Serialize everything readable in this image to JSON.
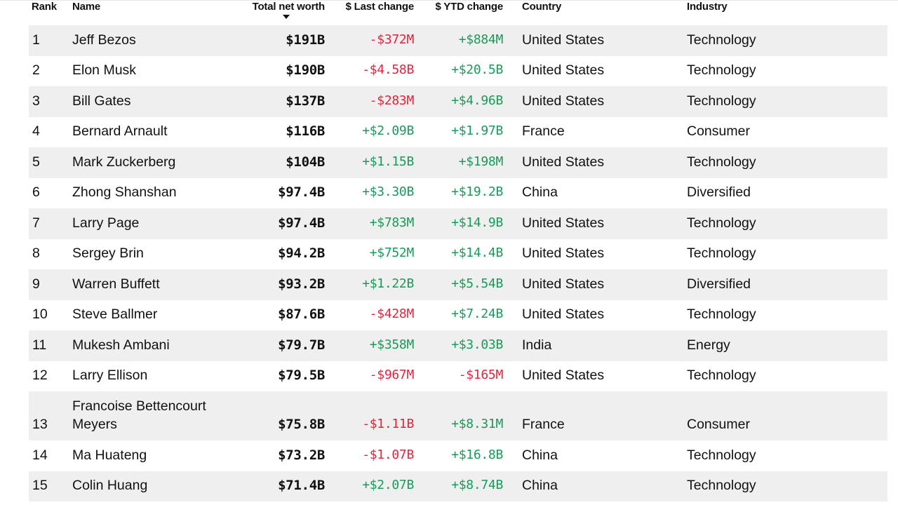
{
  "columns": {
    "rank": "Rank",
    "name": "Name",
    "net_worth": "Total net worth",
    "last_change": "$ Last change",
    "ytd_change": "$ YTD change",
    "country": "Country",
    "industry": "Industry"
  },
  "sort": {
    "column": "net_worth",
    "direction": "descending",
    "icon": "sort-descending-icon"
  },
  "colors": {
    "negative": "#e0243d",
    "positive": "#1a9a5a",
    "row_shade": "#efefef"
  },
  "rows": [
    {
      "rank": "1",
      "name": "Jeff Bezos",
      "net_worth": "$191B",
      "last_change": "-$372M",
      "ytd_change": "+$884M",
      "country": "United States",
      "industry": "Technology"
    },
    {
      "rank": "2",
      "name": "Elon Musk",
      "net_worth": "$190B",
      "last_change": "-$4.58B",
      "ytd_change": "+$20.5B",
      "country": "United States",
      "industry": "Technology"
    },
    {
      "rank": "3",
      "name": "Bill Gates",
      "net_worth": "$137B",
      "last_change": "-$283M",
      "ytd_change": "+$4.96B",
      "country": "United States",
      "industry": "Technology"
    },
    {
      "rank": "4",
      "name": "Bernard Arnault",
      "net_worth": "$116B",
      "last_change": "+$2.09B",
      "ytd_change": "+$1.97B",
      "country": "France",
      "industry": "Consumer"
    },
    {
      "rank": "5",
      "name": "Mark Zuckerberg",
      "net_worth": "$104B",
      "last_change": "+$1.15B",
      "ytd_change": "+$198M",
      "country": "United States",
      "industry": "Technology"
    },
    {
      "rank": "6",
      "name": "Zhong Shanshan",
      "net_worth": "$97.4B",
      "last_change": "+$3.30B",
      "ytd_change": "+$19.2B",
      "country": "China",
      "industry": "Diversified"
    },
    {
      "rank": "7",
      "name": "Larry Page",
      "net_worth": "$97.4B",
      "last_change": "+$783M",
      "ytd_change": "+$14.9B",
      "country": "United States",
      "industry": "Technology"
    },
    {
      "rank": "8",
      "name": "Sergey Brin",
      "net_worth": "$94.2B",
      "last_change": "+$752M",
      "ytd_change": "+$14.4B",
      "country": "United States",
      "industry": "Technology"
    },
    {
      "rank": "9",
      "name": "Warren Buffett",
      "net_worth": "$93.2B",
      "last_change": "+$1.22B",
      "ytd_change": "+$5.54B",
      "country": "United States",
      "industry": "Diversified"
    },
    {
      "rank": "10",
      "name": "Steve Ballmer",
      "net_worth": "$87.6B",
      "last_change": "-$428M",
      "ytd_change": "+$7.24B",
      "country": "United States",
      "industry": "Technology"
    },
    {
      "rank": "11",
      "name": "Mukesh Ambani",
      "net_worth": "$79.7B",
      "last_change": "+$358M",
      "ytd_change": "+$3.03B",
      "country": "India",
      "industry": "Energy"
    },
    {
      "rank": "12",
      "name": "Larry Ellison",
      "net_worth": "$79.5B",
      "last_change": "-$967M",
      "ytd_change": "-$165M",
      "country": "United States",
      "industry": "Technology"
    },
    {
      "rank": "13",
      "name": "Francoise Bettencourt Meyers",
      "net_worth": "$75.8B",
      "last_change": "-$1.11B",
      "ytd_change": "+$8.31M",
      "country": "France",
      "industry": "Consumer"
    },
    {
      "rank": "14",
      "name": "Ma Huateng",
      "net_worth": "$73.2B",
      "last_change": "-$1.07B",
      "ytd_change": "+$16.8B",
      "country": "China",
      "industry": "Technology"
    },
    {
      "rank": "15",
      "name": "Colin Huang",
      "net_worth": "$71.4B",
      "last_change": "+$2.07B",
      "ytd_change": "+$8.74B",
      "country": "China",
      "industry": "Technology"
    }
  ]
}
